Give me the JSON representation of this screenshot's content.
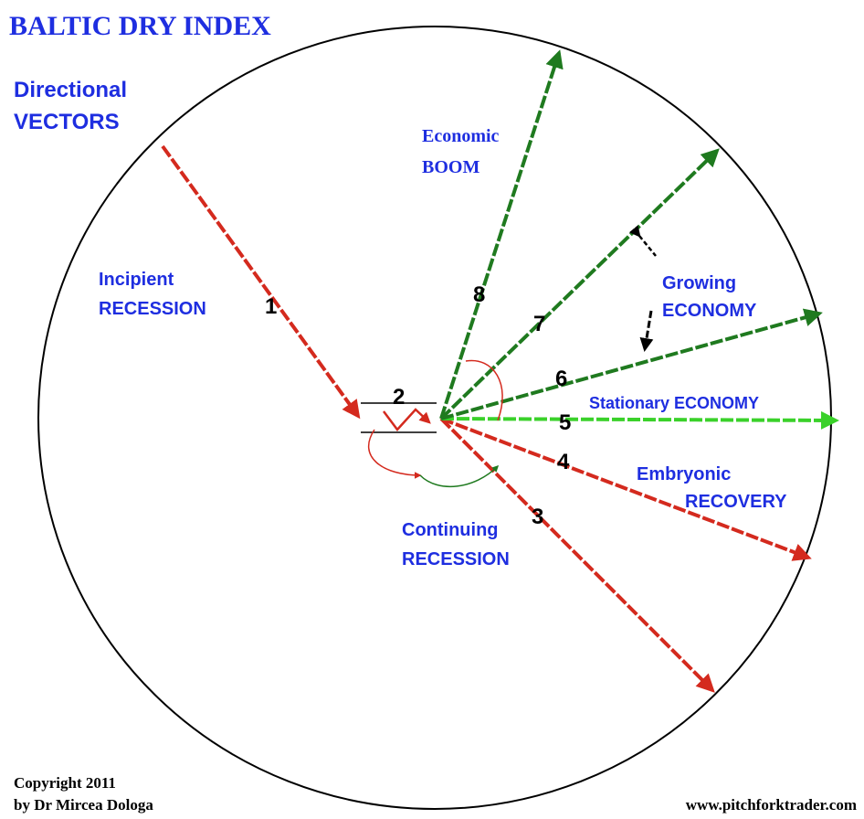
{
  "title": "BALTIC DRY INDEX",
  "subtitle": [
    "Directional",
    "VECTORS"
  ],
  "labels": {
    "incipient": [
      "Incipient",
      "RECESSION"
    ],
    "boom": [
      "Economic",
      "BOOM"
    ],
    "growing": [
      "Growing",
      "ECONOMY"
    ],
    "stationary": "Stationary ECONOMY",
    "embryonic": [
      "Embryonic",
      "RECOVERY"
    ],
    "continuing": [
      "Continuing",
      "RECESSION"
    ]
  },
  "vectors": [
    "1",
    "2",
    "3",
    "4",
    "5",
    "6",
    "7",
    "8"
  ],
  "footer": {
    "copyright": [
      "Copyright 2011",
      "by Dr Mircea Dologa"
    ],
    "url": "www.pitchforktrader.com"
  }
}
